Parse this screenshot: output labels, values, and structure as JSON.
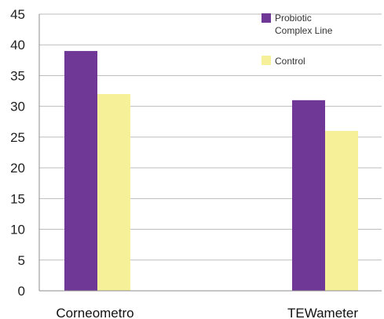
{
  "chart_data": {
    "type": "bar",
    "categories": [
      "Corneometro",
      "TEWameter"
    ],
    "series": [
      {
        "name": "Probiotic Complex Line",
        "values": [
          39,
          31
        ],
        "color": "#6f3796"
      },
      {
        "name": "Control",
        "values": [
          32,
          26
        ],
        "color": "#f6f098"
      }
    ],
    "legend": {
      "placement": "top-right",
      "entries": [
        {
          "lines": [
            "Probiotic",
            "Complex Line"
          ],
          "color": "#6f3796"
        },
        {
          "lines": [
            "Control"
          ],
          "color": "#f6f098"
        }
      ]
    },
    "ylim": [
      0,
      45
    ],
    "yticks": [
      "0",
      "5",
      "10",
      "15",
      "20",
      "25",
      "30",
      "35",
      "40",
      "45"
    ],
    "grid": true,
    "colors": {
      "grid": "#bdbdbd",
      "axis": "#8c8c8c"
    }
  }
}
